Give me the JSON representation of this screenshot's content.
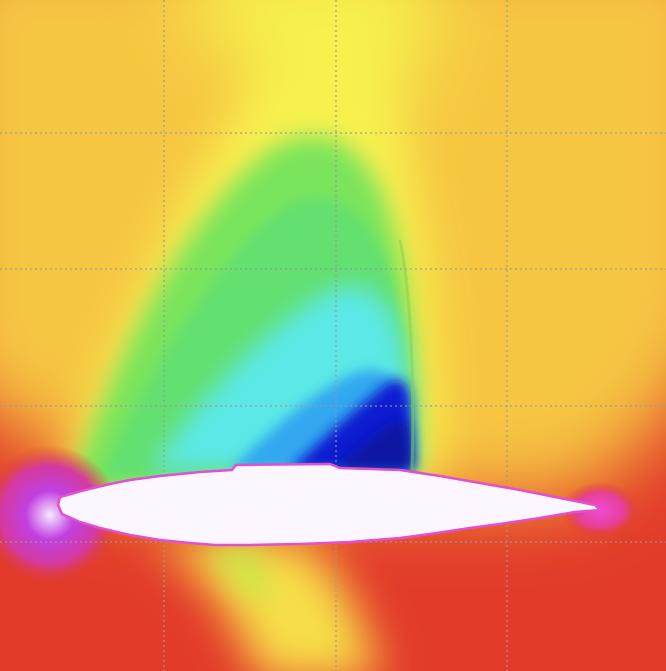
{
  "visualization": {
    "kind": "transonic airfoil pressure/Mach contour field",
    "colors": {
      "freestream": "#f6c643",
      "low_speed": "#e23b2a",
      "transition": "#f8f04f",
      "supersonic": "#79e45c",
      "cyan": "#5ce8e6",
      "deep_blue": "#0c1fd0",
      "stagnation": "#b020c8",
      "airfoil_body": "#fbf6ff",
      "airfoil_edge": "#e050d0",
      "grid": "#9a9a9a"
    }
  }
}
